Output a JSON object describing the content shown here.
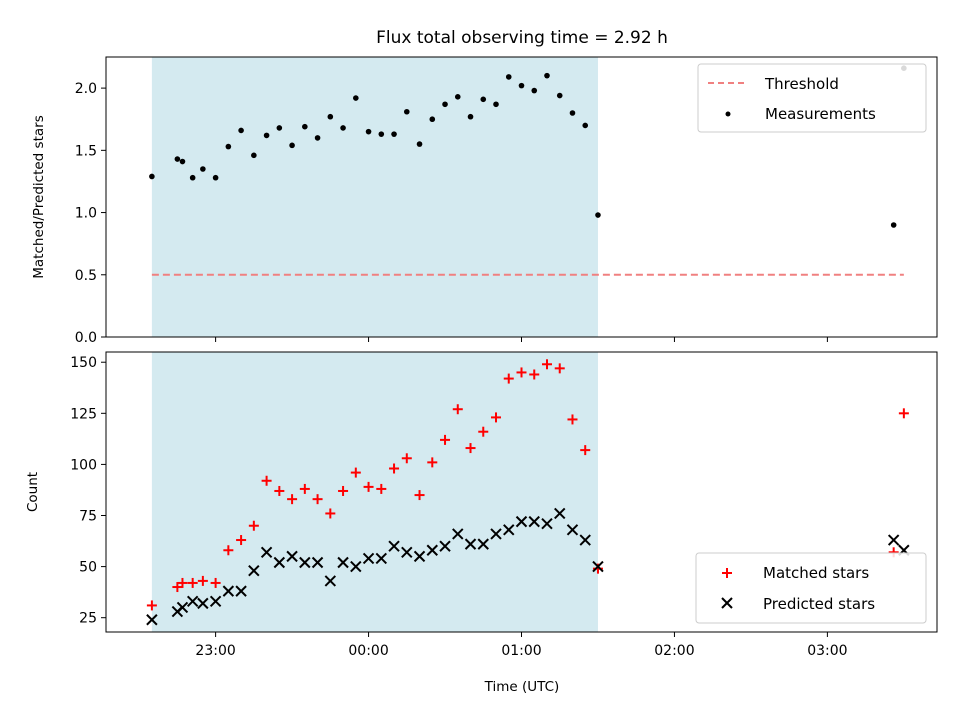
{
  "figure": {
    "title": "Flux total observing time = 2.92 h",
    "xlabel": "Time (UTC)"
  },
  "chart_data": [
    {
      "type": "scatter",
      "name": "ratio",
      "ylabel": "Matched/Predicted stars",
      "xlim": [
        "22:17",
        "03:43"
      ],
      "ylim": [
        0,
        2.25
      ],
      "yticks": [
        0.0,
        0.5,
        1.0,
        1.5,
        2.0
      ],
      "ytick_labels": [
        "0.0",
        "0.5",
        "1.0",
        "1.5",
        "2.0"
      ],
      "shaded_span": [
        "22:35",
        "01:30"
      ],
      "shade_color": "#d4eaf0",
      "legend_position": "top-right",
      "threshold": {
        "name": "Threshold",
        "y": 0.5,
        "x": [
          "22:35",
          "03:30"
        ],
        "color": "#f08080"
      },
      "series": [
        {
          "name": "Measurements",
          "marker": "dot",
          "color": "#000000",
          "x": [
            "22:35",
            "22:45",
            "22:47",
            "22:51",
            "22:55",
            "23:00",
            "23:05",
            "23:10",
            "23:15",
            "23:20",
            "23:25",
            "23:30",
            "23:35",
            "23:40",
            "23:45",
            "23:50",
            "23:55",
            "00:00",
            "00:05",
            "00:10",
            "00:15",
            "00:20",
            "00:25",
            "00:30",
            "00:35",
            "00:40",
            "00:45",
            "00:50",
            "00:55",
            "01:00",
            "01:05",
            "01:10",
            "01:15",
            "01:20",
            "01:25",
            "01:30",
            "03:26",
            "03:30"
          ],
          "y": [
            1.29,
            1.43,
            1.41,
            1.28,
            1.35,
            1.28,
            1.53,
            1.66,
            1.46,
            1.62,
            1.68,
            1.54,
            1.69,
            1.6,
            1.77,
            1.68,
            1.92,
            1.65,
            1.63,
            1.63,
            1.81,
            1.55,
            1.75,
            1.87,
            1.93,
            1.77,
            1.91,
            1.87,
            2.09,
            2.02,
            1.98,
            2.1,
            1.94,
            1.8,
            1.7,
            0.98,
            0.9,
            2.16
          ]
        }
      ]
    },
    {
      "type": "scatter",
      "name": "counts",
      "ylabel": "Count",
      "xlim": [
        "22:17",
        "03:43"
      ],
      "ylim": [
        18,
        155
      ],
      "yticks": [
        25,
        50,
        75,
        100,
        125,
        150
      ],
      "ytick_labels": [
        "25",
        "50",
        "75",
        "100",
        "125",
        "150"
      ],
      "xticks": [
        "23:00",
        "00:00",
        "01:00",
        "02:00",
        "03:00"
      ],
      "xtick_labels": [
        "23:00",
        "00:00",
        "01:00",
        "02:00",
        "03:00"
      ],
      "shaded_span": [
        "22:35",
        "01:30"
      ],
      "shade_color": "#d4eaf0",
      "legend_position": "bottom-right",
      "series": [
        {
          "name": "Matched stars",
          "marker": "plus",
          "color": "#ff0000",
          "x": [
            "22:35",
            "22:45",
            "22:47",
            "22:51",
            "22:55",
            "23:00",
            "23:05",
            "23:10",
            "23:15",
            "23:20",
            "23:25",
            "23:30",
            "23:35",
            "23:40",
            "23:45",
            "23:50",
            "23:55",
            "00:00",
            "00:05",
            "00:10",
            "00:15",
            "00:20",
            "00:25",
            "00:30",
            "00:35",
            "00:40",
            "00:45",
            "00:50",
            "00:55",
            "01:00",
            "01:05",
            "01:10",
            "01:15",
            "01:20",
            "01:25",
            "01:30",
            "03:26",
            "03:30"
          ],
          "y": [
            31,
            40,
            42,
            42,
            43,
            42,
            58,
            63,
            70,
            92,
            87,
            83,
            88,
            83,
            76,
            87,
            96,
            89,
            88,
            98,
            103,
            85,
            101,
            112,
            127,
            108,
            116,
            123,
            142,
            145,
            144,
            149,
            147,
            122,
            107,
            49,
            57,
            125
          ]
        },
        {
          "name": "Predicted stars",
          "marker": "x",
          "color": "#000000",
          "x": [
            "22:35",
            "22:45",
            "22:47",
            "22:51",
            "22:55",
            "23:00",
            "23:05",
            "23:10",
            "23:15",
            "23:20",
            "23:25",
            "23:30",
            "23:35",
            "23:40",
            "23:45",
            "23:50",
            "23:55",
            "00:00",
            "00:05",
            "00:10",
            "00:15",
            "00:20",
            "00:25",
            "00:30",
            "00:35",
            "00:40",
            "00:45",
            "00:50",
            "00:55",
            "01:00",
            "01:05",
            "01:10",
            "01:15",
            "01:20",
            "01:25",
            "01:30",
            "03:26",
            "03:30"
          ],
          "y": [
            24,
            28,
            30,
            33,
            32,
            33,
            38,
            38,
            48,
            57,
            52,
            55,
            52,
            52,
            43,
            52,
            50,
            54,
            54,
            60,
            57,
            55,
            58,
            60,
            66,
            61,
            61,
            66,
            68,
            72,
            72,
            71,
            76,
            68,
            63,
            50,
            63,
            58
          ]
        }
      ]
    }
  ]
}
